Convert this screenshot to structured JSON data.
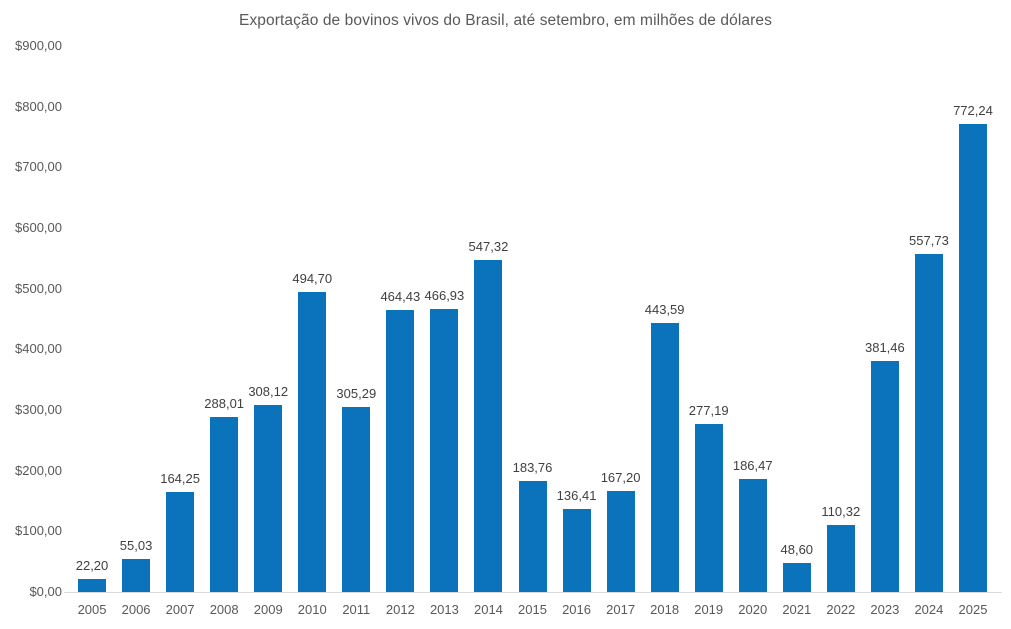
{
  "chart_data": {
    "type": "bar",
    "title": "Exportação de bovinos vivos do Brasil, até setembro, em milhões de dólares",
    "categories": [
      "2005",
      "2006",
      "2007",
      "2008",
      "2009",
      "2010",
      "2011",
      "2012",
      "2013",
      "2014",
      "2015",
      "2016",
      "2017",
      "2018",
      "2019",
      "2020",
      "2021",
      "2022",
      "2023",
      "2024",
      "2025"
    ],
    "values": [
      22.2,
      55.03,
      164.25,
      288.01,
      308.12,
      494.7,
      305.29,
      464.43,
      466.93,
      547.32,
      183.76,
      136.41,
      167.2,
      443.59,
      277.19,
      186.47,
      48.6,
      110.32,
      381.46,
      557.73,
      772.24
    ],
    "value_labels": [
      "22,20",
      "55,03",
      "164,25",
      "288,01",
      "308,12",
      "494,70",
      "305,29",
      "464,43",
      "466,93",
      "547,32",
      "183,76",
      "136,41",
      "167,20",
      "443,59",
      "277,19",
      "186,47",
      "48,60",
      "110,32",
      "381,46",
      "557,73",
      "772,24"
    ],
    "y_ticks": [
      {
        "value": 0,
        "label": "$0,00"
      },
      {
        "value": 100,
        "label": "$100,00"
      },
      {
        "value": 200,
        "label": "$200,00"
      },
      {
        "value": 300,
        "label": "$300,00"
      },
      {
        "value": 400,
        "label": "$400,00"
      },
      {
        "value": 500,
        "label": "$500,00"
      },
      {
        "value": 600,
        "label": "$600,00"
      },
      {
        "value": 700,
        "label": "$700,00"
      },
      {
        "value": 800,
        "label": "$800,00"
      },
      {
        "value": 900,
        "label": "$900,00"
      }
    ],
    "ylim": [
      0,
      900
    ],
    "xlabel": "",
    "ylabel": "",
    "grid": false,
    "legend_position": "none",
    "colors": {
      "bar": "#0B72BC",
      "title": "#595959",
      "axis_labels": "#595959",
      "value_labels": "#404040",
      "axis_line": "#D9D9D9",
      "background": "#FFFFFF"
    }
  }
}
